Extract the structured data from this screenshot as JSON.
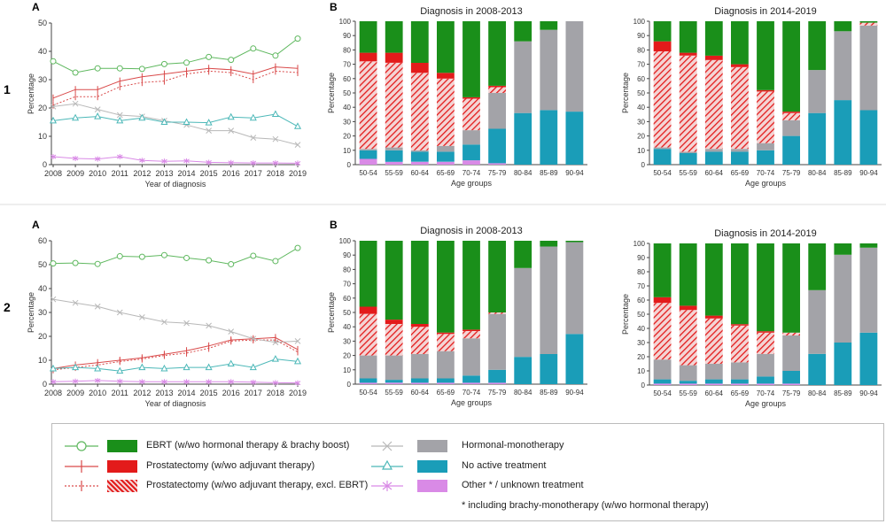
{
  "figure": {
    "row_labels": [
      "1",
      "2"
    ],
    "panel_a_label": "A",
    "panel_b_label": "B"
  },
  "colors": {
    "ebrt": "#1a8f1a",
    "ebrt_line": "#5fb85f",
    "prostatectomy": "#e31b1b",
    "prostatectomy_line": "#d94a4a",
    "hormonal": "#a3a3a8",
    "hormonal_line": "#b8b8b8",
    "no_active": "#1a9db8",
    "no_active_line": "#4cb8b8",
    "other": "#d98ae6"
  },
  "legend": {
    "items": [
      {
        "key": "ebrt",
        "label": "EBRT (w/wo hormonal therapy & brachy boost)",
        "marker": "circle-icon"
      },
      {
        "key": "prostatectomy",
        "label": "Prostatectomy (w/wo adjuvant therapy)",
        "marker": "plus-icon"
      },
      {
        "key": "prostatectomy_excl",
        "label": "Prostatectomy (w/wo adjuvant therapy, excl. EBRT)",
        "marker": "dotted-plus-icon"
      },
      {
        "key": "hormonal",
        "label": "Hormonal-monotherapy",
        "marker": "cross-icon"
      },
      {
        "key": "no_active",
        "label": "No active treatment",
        "marker": "triangle-icon"
      },
      {
        "key": "other",
        "label": "Other * / unknown treatment",
        "marker": "asterisk-icon"
      }
    ],
    "footnote": "* including brachy-monotherapy  (w/wo hormonal therapy)"
  },
  "chart_data": [
    {
      "id": "row1-line",
      "type": "line",
      "xlabel": "Year of diagnosis",
      "ylabel": "Percentage",
      "x": [
        "2008",
        "2009",
        "2010",
        "2011",
        "2012",
        "2013",
        "2014",
        "2015",
        "2016",
        "2017",
        "2018",
        "2019"
      ],
      "ylim": [
        0,
        50
      ],
      "yticks": [
        0,
        10,
        20,
        30,
        40,
        50
      ],
      "series": [
        {
          "key": "ebrt",
          "values": [
            36.5,
            32.5,
            34,
            34,
            33.8,
            35.5,
            36,
            38,
            37,
            41,
            38.5,
            44.5
          ]
        },
        {
          "key": "prostatectomy",
          "values": [
            23.5,
            26.5,
            26.5,
            29.5,
            31,
            32,
            33,
            34,
            33.5,
            32,
            34.5,
            34
          ]
        },
        {
          "key": "prostatectomy_excl",
          "values": [
            21,
            24,
            24,
            27.5,
            29,
            29.5,
            32,
            33,
            32.5,
            30,
            33,
            32.5
          ]
        },
        {
          "key": "hormonal",
          "values": [
            20.5,
            21.5,
            19.5,
            17.5,
            17,
            15.5,
            14,
            12,
            12,
            9.5,
            9,
            7
          ]
        },
        {
          "key": "no_active",
          "values": [
            15.5,
            16.5,
            17,
            15.5,
            16.5,
            15,
            15,
            14.8,
            16.8,
            16.5,
            17.8,
            13.5
          ]
        },
        {
          "key": "other",
          "values": [
            2.8,
            2.2,
            2,
            2.8,
            1.5,
            1.2,
            1.3,
            0.8,
            0.7,
            0.6,
            0.6,
            0.5
          ]
        }
      ]
    },
    {
      "id": "row1-bar-2008",
      "type": "bar",
      "title": "Diagnosis in 2008-2013",
      "xlabel": "Age groups",
      "ylabel": "Percentage",
      "ylim": [
        0,
        100
      ],
      "categories": [
        "50-54",
        "55-59",
        "60-64",
        "65-69",
        "70-74",
        "75-79",
        "80-84",
        "85-89",
        "90-94"
      ],
      "series": [
        {
          "key": "other",
          "values": [
            4,
            2,
            2,
            2,
            3,
            1,
            0,
            0,
            0
          ]
        },
        {
          "key": "no_active",
          "values": [
            6,
            8,
            7,
            7,
            11,
            24,
            36,
            38,
            37
          ]
        },
        {
          "key": "hormonal",
          "values": [
            1,
            2,
            1,
            4,
            10,
            25,
            50,
            56,
            63
          ]
        },
        {
          "key": "prostatectomy_excl",
          "values": [
            61,
            59,
            54,
            47,
            22,
            4,
            0,
            0,
            0
          ]
        },
        {
          "key": "prostatectomy",
          "values": [
            6,
            7,
            7,
            4,
            1,
            1,
            0,
            0,
            0
          ]
        },
        {
          "key": "ebrt",
          "values": [
            22,
            22,
            29,
            36,
            53,
            45,
            14,
            6,
            0
          ]
        }
      ]
    },
    {
      "id": "row1-bar-2014",
      "type": "bar",
      "title": "Diagnosis in 2014-2019",
      "xlabel": "Age groups",
      "ylabel": "Percentage",
      "ylim": [
        0,
        100
      ],
      "categories": [
        "50-54",
        "55-59",
        "60-64",
        "65-69",
        "70-74",
        "75-79",
        "80-84",
        "85-89",
        "90-94"
      ],
      "series": [
        {
          "key": "other",
          "values": [
            0,
            0,
            0,
            0,
            0,
            0,
            0,
            0,
            0
          ]
        },
        {
          "key": "no_active",
          "values": [
            11,
            8,
            9,
            9,
            10,
            20,
            36,
            45,
            38
          ]
        },
        {
          "key": "hormonal",
          "values": [
            1,
            1,
            2,
            2,
            5,
            11,
            30,
            48,
            59
          ]
        },
        {
          "key": "prostatectomy_excl",
          "values": [
            67,
            67,
            62,
            57,
            36,
            5,
            0,
            0,
            2
          ]
        },
        {
          "key": "prostatectomy",
          "values": [
            7,
            2,
            3,
            2,
            1,
            1,
            0,
            0,
            0
          ]
        },
        {
          "key": "ebrt",
          "values": [
            14,
            22,
            24,
            30,
            48,
            63,
            34,
            7,
            1
          ]
        }
      ]
    },
    {
      "id": "row2-line",
      "type": "line",
      "xlabel": "Year of diagnosis",
      "ylabel": "Percentage",
      "x": [
        "2008",
        "2009",
        "2010",
        "2011",
        "2012",
        "2013",
        "2014",
        "2015",
        "2016",
        "2017",
        "2018",
        "2019"
      ],
      "ylim": [
        0,
        60
      ],
      "yticks": [
        0,
        10,
        20,
        30,
        40,
        50,
        60
      ],
      "series": [
        {
          "key": "ebrt",
          "values": [
            50.5,
            50.7,
            50.3,
            53.5,
            53.3,
            54,
            52.8,
            51.8,
            50.2,
            53.7,
            51.5,
            57
          ]
        },
        {
          "key": "prostatectomy",
          "values": [
            6.5,
            8,
            9,
            10,
            11,
            12.5,
            14,
            16,
            18.5,
            19,
            19.5,
            14.5
          ]
        },
        {
          "key": "prostatectomy_excl",
          "values": [
            6,
            7,
            8,
            9.5,
            10.5,
            12,
            13,
            15,
            18,
            18.5,
            18.5,
            13.5
          ]
        },
        {
          "key": "hormonal",
          "values": [
            35.5,
            34,
            32.5,
            30,
            28,
            26,
            25.5,
            24.5,
            22,
            19,
            17.5,
            18
          ]
        },
        {
          "key": "no_active",
          "values": [
            6.5,
            7,
            6.5,
            5.5,
            7,
            6.5,
            7,
            7,
            8.5,
            7,
            10.5,
            9.5
          ]
        },
        {
          "key": "other",
          "values": [
            1,
            1.2,
            1.5,
            1.2,
            1,
            1,
            1,
            1,
            1,
            0.8,
            0.6,
            0.5
          ]
        }
      ]
    },
    {
      "id": "row2-bar-2008",
      "type": "bar",
      "title": "Diagnosis in 2008-2013",
      "xlabel": "Age groups",
      "ylabel": "Percentage",
      "ylim": [
        0,
        100
      ],
      "categories": [
        "50-54",
        "55-59",
        "60-64",
        "65-69",
        "70-74",
        "75-79",
        "80-84",
        "85-89",
        "90-94"
      ],
      "series": [
        {
          "key": "other",
          "values": [
            1,
            1,
            1,
            1,
            1,
            1,
            0,
            0,
            0
          ]
        },
        {
          "key": "no_active",
          "values": [
            3,
            2,
            3,
            3,
            5,
            9,
            19,
            21,
            35
          ]
        },
        {
          "key": "hormonal",
          "values": [
            16,
            17,
            17,
            19,
            26,
            39,
            62,
            75,
            64
          ]
        },
        {
          "key": "prostatectomy_excl",
          "values": [
            29,
            22,
            19,
            12,
            5,
            1,
            0,
            0,
            0
          ]
        },
        {
          "key": "prostatectomy",
          "values": [
            5,
            3,
            2,
            1,
            1,
            0,
            0,
            0,
            0
          ]
        },
        {
          "key": "ebrt",
          "values": [
            46,
            55,
            58,
            64,
            62,
            50,
            19,
            4,
            1
          ]
        }
      ]
    },
    {
      "id": "row2-bar-2014",
      "type": "bar",
      "title": "Diagnosis in 2014-2019",
      "xlabel": "Age groups",
      "ylabel": "Percentage",
      "ylim": [
        0,
        100
      ],
      "categories": [
        "50-54",
        "55-59",
        "60-64",
        "65-69",
        "70-74",
        "75-79",
        "80-84",
        "85-89",
        "90-94"
      ],
      "series": [
        {
          "key": "other",
          "values": [
            1,
            1,
            1,
            1,
            1,
            1,
            0,
            0,
            0
          ]
        },
        {
          "key": "no_active",
          "values": [
            3,
            2,
            3,
            3,
            5,
            9,
            22,
            30,
            37
          ]
        },
        {
          "key": "hormonal",
          "values": [
            14,
            11,
            11,
            12,
            16,
            25,
            45,
            62,
            60
          ]
        },
        {
          "key": "prostatectomy_excl",
          "values": [
            40,
            39,
            32,
            26,
            15,
            2,
            0,
            0,
            0
          ]
        },
        {
          "key": "prostatectomy",
          "values": [
            4,
            3,
            2,
            1,
            1,
            0,
            0,
            0,
            0
          ]
        },
        {
          "key": "ebrt",
          "values": [
            38,
            44,
            51,
            57,
            62,
            63,
            33,
            8,
            3
          ]
        }
      ]
    }
  ]
}
